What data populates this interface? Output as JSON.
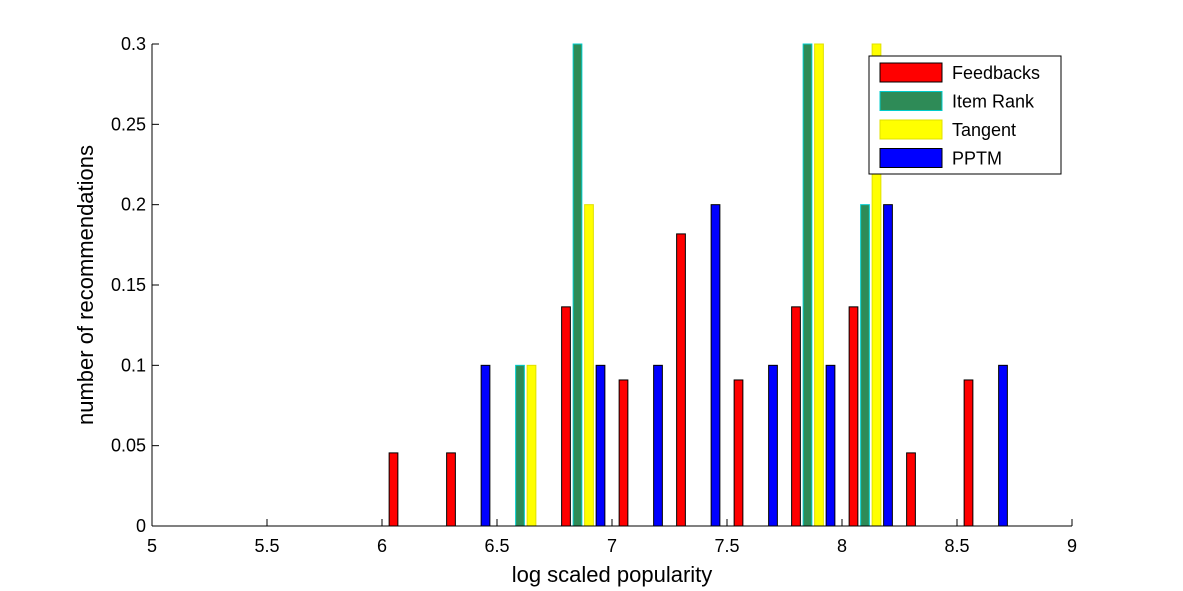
{
  "chart_data": {
    "type": "bar",
    "title": "",
    "xlabel": "log scaled popularity",
    "ylabel": "number of recommendations",
    "xlim": [
      5,
      9
    ],
    "ylim": [
      0,
      0.3
    ],
    "xticks": [
      "5",
      "5.5",
      "6",
      "6.5",
      "7",
      "7.5",
      "8",
      "8.5",
      "9"
    ],
    "yticks": [
      "0",
      "0.05",
      "0.1",
      "0.15",
      "0.2",
      "0.25",
      "0.3"
    ],
    "legend_position": "top-right",
    "grid": false,
    "bin_centers": [
      5.125,
      5.375,
      5.625,
      5.875,
      6.125,
      6.375,
      6.625,
      6.875,
      7.125,
      7.375,
      7.625,
      7.875,
      8.125,
      8.375,
      8.625,
      8.875
    ],
    "series": [
      {
        "name": "Feedbacks",
        "color": "#ff0000",
        "edge": "#000000",
        "values": [
          0,
          0,
          0,
          0,
          0.0455,
          0.0455,
          0,
          0.1364,
          0.0909,
          0.1818,
          0.0909,
          0.1364,
          0.1364,
          0.0455,
          0.0909,
          0
        ]
      },
      {
        "name": "Item Rank",
        "color": "#2e8b57",
        "edge": "#00cccc",
        "values": [
          0,
          0,
          0,
          0,
          0,
          0,
          0.1,
          0.3,
          0,
          0,
          0,
          0.3,
          0.2,
          0,
          0,
          0
        ]
      },
      {
        "name": "Tangent",
        "color": "#ffff00",
        "edge": "#e0e000",
        "values": [
          0,
          0,
          0,
          0,
          0,
          0,
          0.1,
          0.2,
          0,
          0,
          0,
          0.3,
          0.3,
          0,
          0,
          0
        ]
      },
      {
        "name": "PPTM",
        "color": "#0000ff",
        "edge": "#000000",
        "values": [
          0,
          0,
          0,
          0,
          0,
          0.1,
          0,
          0.1,
          0.1,
          0.2,
          0.1,
          0.1,
          0.2,
          0,
          0.1,
          0
        ]
      }
    ]
  }
}
